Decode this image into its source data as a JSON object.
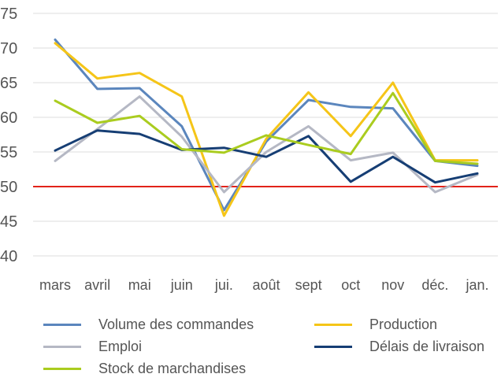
{
  "chart_data": {
    "type": "line",
    "categories": [
      "mars",
      "avril",
      "mai",
      "juin",
      "jui.",
      "août",
      "sept",
      "oct",
      "nov",
      "déc.",
      "jan."
    ],
    "ylim": [
      40,
      75
    ],
    "yticks": [
      40,
      45,
      50,
      55,
      60,
      65,
      70,
      75
    ],
    "grid": true,
    "threshold": {
      "value": 50,
      "color": "#e2231a"
    },
    "legend_position": "bottom",
    "series": [
      {
        "name": "Volume des commandes",
        "color": "#5b86bd",
        "values": [
          71.2,
          64.1,
          64.2,
          58.7,
          46.6,
          56.5,
          62.5,
          61.5,
          61.3,
          53.7,
          53.0
        ]
      },
      {
        "name": "Production",
        "color": "#f5c518",
        "values": [
          70.7,
          65.6,
          66.4,
          63.0,
          45.8,
          56.9,
          63.6,
          57.3,
          65.0,
          53.8,
          53.8
        ]
      },
      {
        "name": "Emploi",
        "color": "#b5b8c4",
        "values": [
          53.7,
          58.3,
          63.0,
          57.2,
          49.2,
          55.0,
          58.7,
          53.8,
          54.9,
          49.2,
          51.7
        ]
      },
      {
        "name": "Délais de livraison",
        "color": "#163e74",
        "values": [
          55.2,
          58.1,
          57.6,
          55.3,
          55.6,
          54.3,
          57.3,
          50.7,
          54.3,
          50.6,
          51.9
        ]
      },
      {
        "name": "Stock de marchandises",
        "color": "#aacc1f",
        "values": [
          62.4,
          59.2,
          60.2,
          55.4,
          54.9,
          57.4,
          56.0,
          54.7,
          63.5,
          53.7,
          53.3
        ]
      }
    ]
  }
}
